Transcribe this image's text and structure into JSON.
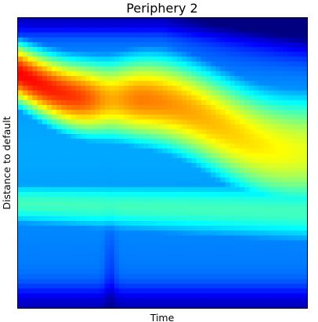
{
  "chart_data": {
    "type": "heatmap",
    "title": "Periphery 2",
    "xlabel": "Time",
    "ylabel": "Distance to default",
    "x_ticks": [],
    "y_ticks": [],
    "colormap": "jet",
    "value_range": [
      0,
      1
    ],
    "grid": false,
    "legend": "none",
    "x_resolution": 60,
    "y_resolution": 60,
    "description_of_structure": "",
    "colors": {
      "low": "#00007f",
      "mid_low": "#0080ff",
      "mid": "#7fff7f",
      "mid_high": "#ff8000",
      "high": "#7f0000"
    }
  }
}
